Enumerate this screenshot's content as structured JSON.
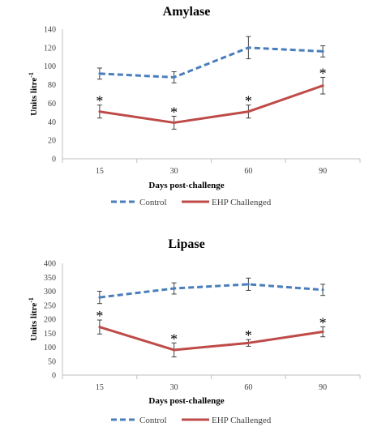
{
  "colors": {
    "control": "#4a7ebb",
    "challenged": "#be4b48",
    "axis": "#bfbfbf",
    "error": "#404040"
  },
  "chart_data": [
    {
      "type": "line",
      "title": "Amylase",
      "xlabel": "Days post-challenge",
      "ylabel": "Units litre",
      "ylabel_sup": "-1",
      "categories": [
        "15",
        "30",
        "60",
        "90"
      ],
      "ylim": [
        0,
        140
      ],
      "yticks": [
        0,
        20,
        40,
        60,
        80,
        100,
        120,
        140
      ],
      "grid": false,
      "legend_position": "bottom",
      "significance_marker": "*",
      "series": [
        {
          "name": "Control",
          "key": "control",
          "style": "dashed",
          "values": [
            92,
            88,
            120,
            116
          ],
          "errors": [
            6,
            6,
            12,
            6
          ]
        },
        {
          "name": "EHP Challenged",
          "key": "challenged",
          "style": "solid",
          "values": [
            51,
            39,
            51,
            79
          ],
          "errors": [
            7,
            7,
            7,
            9
          ],
          "significant": [
            true,
            true,
            true,
            true
          ]
        }
      ]
    },
    {
      "type": "line",
      "title": "Lipase",
      "xlabel": "Days post-challenge",
      "ylabel": "Units litre",
      "ylabel_sup": "-1",
      "categories": [
        "15",
        "30",
        "60",
        "90"
      ],
      "ylim": [
        0,
        400
      ],
      "yticks": [
        0,
        50,
        100,
        150,
        200,
        250,
        300,
        350,
        400
      ],
      "grid": false,
      "legend_position": "bottom",
      "significance_marker": "*",
      "series": [
        {
          "name": "Control",
          "key": "control",
          "style": "dashed",
          "values": [
            278,
            310,
            325,
            305
          ],
          "errors": [
            22,
            20,
            22,
            20
          ]
        },
        {
          "name": "EHP Challenged",
          "key": "challenged",
          "style": "solid",
          "values": [
            172,
            90,
            115,
            155
          ],
          "errors": [
            25,
            25,
            12,
            18
          ],
          "significant": [
            true,
            true,
            true,
            true
          ]
        }
      ]
    }
  ]
}
